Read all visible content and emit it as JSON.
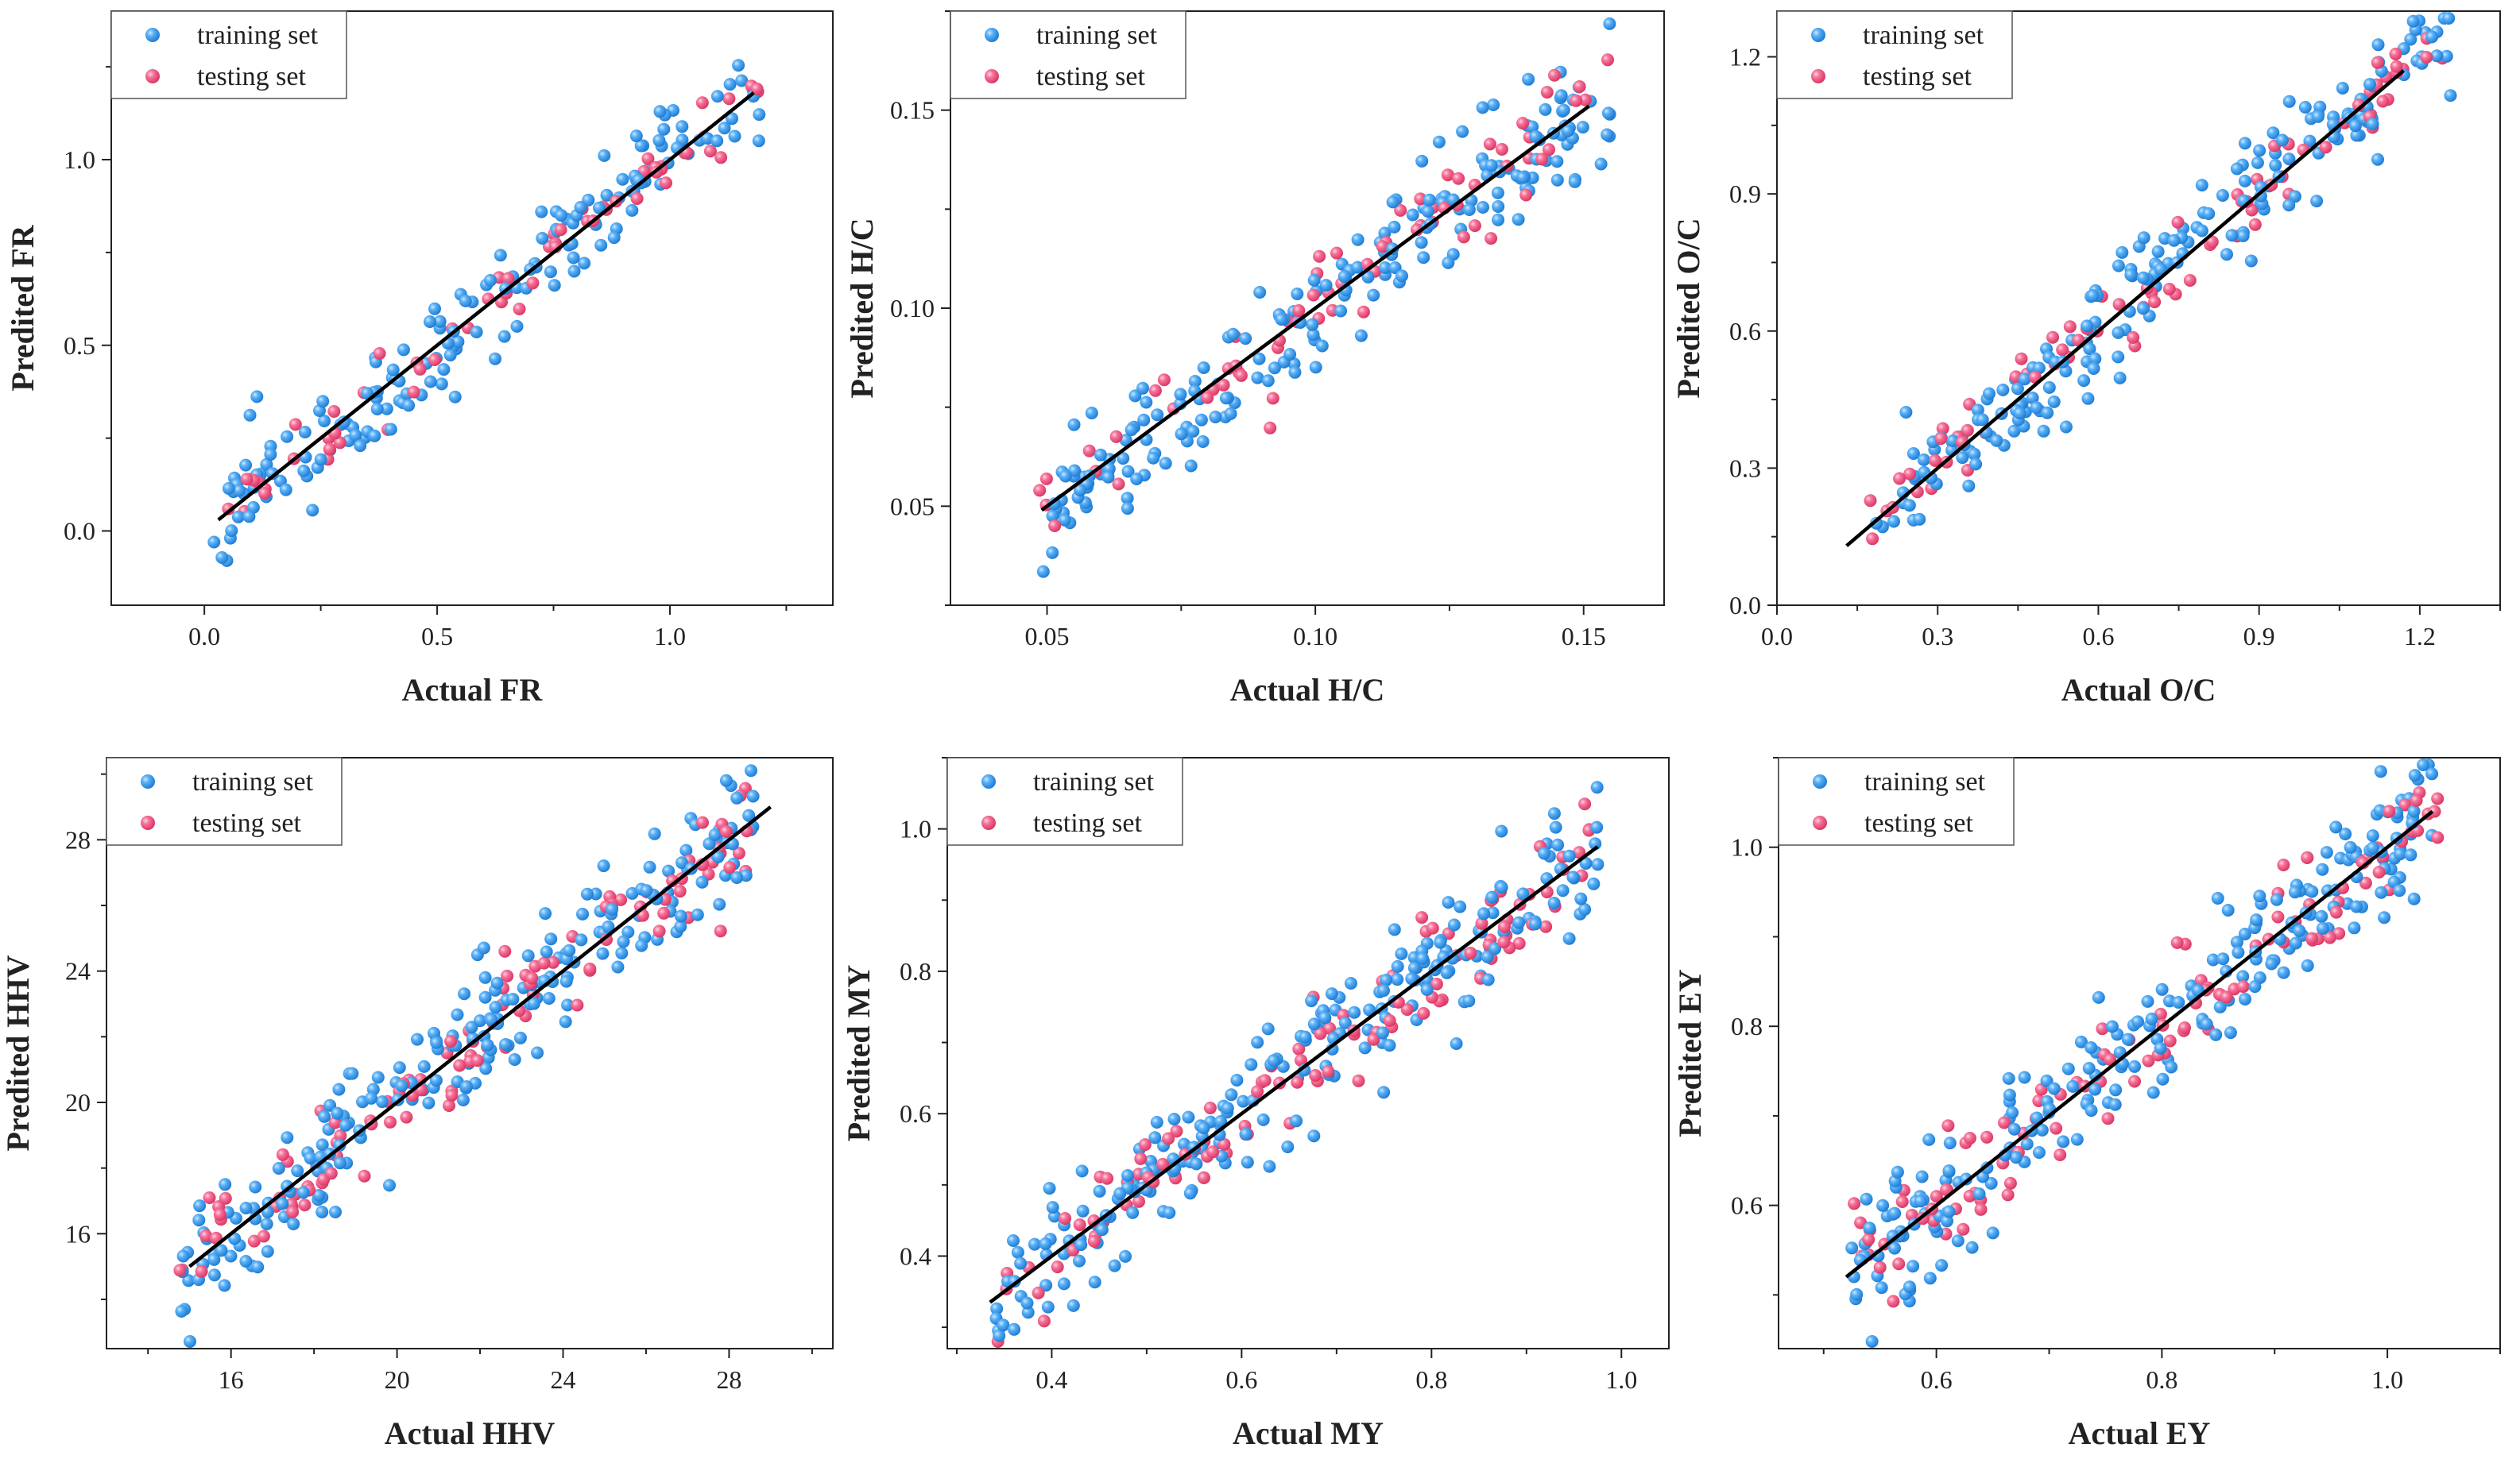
{
  "figure": {
    "background": "#ffffff"
  },
  "colors": {
    "training": "#3d9ff0",
    "testing": "#f45c84",
    "fit_line": "#000000",
    "axis": "#222222"
  },
  "chart_data": [
    {
      "type": "scatter",
      "xlabel": "Actual FR",
      "ylabel": "Predited FR",
      "xlim": [
        -0.2,
        1.35
      ],
      "ylim": [
        -0.2,
        1.4
      ],
      "xticks": [
        0.0,
        0.5,
        1.0
      ],
      "xtick_labels": [
        "0.0",
        "0.5",
        "1.0"
      ],
      "yticks": [
        0.0,
        0.5,
        1.0
      ],
      "ytick_labels": [
        "0.0",
        "0.5",
        "1.0"
      ],
      "fit_line": [
        [
          0.03,
          0.03
        ],
        [
          1.18,
          1.18
        ]
      ],
      "legend": [
        "training set",
        "testing set"
      ],
      "sample": {
        "n_train": 170,
        "n_test": 60,
        "xmin": 0.02,
        "xmax": 1.2,
        "noise": 0.07,
        "seed": 11
      }
    },
    {
      "type": "scatter",
      "xlabel": "Actual H/C",
      "ylabel": "Predited H/C",
      "xlim": [
        0.032,
        0.165
      ],
      "ylim": [
        0.025,
        0.175
      ],
      "xticks": [
        0.05,
        0.1,
        0.15
      ],
      "xtick_labels": [
        "0.05",
        "0.10",
        "0.15"
      ],
      "yticks": [
        0.05,
        0.1,
        0.15
      ],
      "ytick_labels": [
        "0.05",
        "0.10",
        "0.15"
      ],
      "fit_line": [
        [
          0.049,
          0.049
        ],
        [
          0.151,
          0.151
        ]
      ],
      "legend": [
        "training set",
        "testing set"
      ],
      "sample": {
        "n_train": 200,
        "n_test": 70,
        "xmin": 0.048,
        "xmax": 0.155,
        "noise": 0.0075,
        "seed": 23
      }
    },
    {
      "type": "scatter",
      "xlabel": "Actual O/C",
      "ylabel": "Predited O/C",
      "xlim": [
        0.0,
        1.35
      ],
      "ylim": [
        0.0,
        1.3
      ],
      "xticks": [
        0.0,
        0.3,
        0.6,
        0.9,
        1.2
      ],
      "xtick_labels": [
        "0.0",
        "0.3",
        "0.6",
        "0.9",
        "1.2"
      ],
      "yticks": [
        0.0,
        0.3,
        0.6,
        0.9,
        1.2
      ],
      "ytick_labels": [
        "0.0",
        "0.3",
        "0.6",
        "0.9",
        "1.2"
      ],
      "fit_line": [
        [
          0.13,
          0.13
        ],
        [
          1.17,
          1.17
        ]
      ],
      "legend": [
        "training set",
        "testing set"
      ],
      "sample": {
        "n_train": 200,
        "n_test": 80,
        "xmin": 0.17,
        "xmax": 1.26,
        "noise": 0.06,
        "seed": 37
      }
    },
    {
      "type": "scatter",
      "xlabel": "Actual HHV",
      "ylabel": "Predited HHV",
      "xlim": [
        13.0,
        30.5
      ],
      "ylim": [
        12.5,
        30.5
      ],
      "xticks": [
        16,
        20,
        24,
        28
      ],
      "xtick_labels": [
        "16",
        "20",
        "24",
        "28"
      ],
      "yticks": [
        16,
        20,
        24,
        28
      ],
      "ytick_labels": [
        "16",
        "20",
        "24",
        "28"
      ],
      "fit_line": [
        [
          15.0,
          15.0
        ],
        [
          29.0,
          29.0
        ]
      ],
      "legend": [
        "training set",
        "testing set"
      ],
      "sample": {
        "n_train": 220,
        "n_test": 110,
        "xmin": 14.6,
        "xmax": 28.6,
        "noise": 1.0,
        "seed": 41
      }
    },
    {
      "type": "scatter",
      "xlabel": "Actual MY",
      "ylabel": "Predited MY",
      "xlim": [
        0.29,
        1.05
      ],
      "ylim": [
        0.27,
        1.1
      ],
      "xticks": [
        0.4,
        0.6,
        0.8,
        1.0
      ],
      "xtick_labels": [
        "0.4",
        "0.6",
        "0.8",
        "1.0"
      ],
      "yticks": [
        0.4,
        0.6,
        0.8,
        1.0
      ],
      "ytick_labels": [
        "0.4",
        "0.6",
        "0.8",
        "1.0"
      ],
      "fit_line": [
        [
          0.335,
          0.335
        ],
        [
          0.975,
          0.975
        ]
      ],
      "legend": [
        "training set",
        "testing set"
      ],
      "sample": {
        "n_train": 230,
        "n_test": 110,
        "xmin": 0.335,
        "xmax": 0.975,
        "noise": 0.045,
        "seed": 53
      }
    },
    {
      "type": "scatter",
      "xlabel": "Actual EY",
      "ylabel": "Predited EY",
      "xlim": [
        0.46,
        1.1
      ],
      "ylim": [
        0.44,
        1.1
      ],
      "xticks": [
        0.6,
        0.8,
        1.0
      ],
      "xtick_labels": [
        "0.6",
        "0.8",
        "1.0"
      ],
      "yticks": [
        0.6,
        0.8,
        1.0
      ],
      "ytick_labels": [
        "0.6",
        "0.8",
        "1.0"
      ],
      "fit_line": [
        [
          0.52,
          0.52
        ],
        [
          1.04,
          1.04
        ]
      ],
      "legend": [
        "training set",
        "testing set"
      ],
      "sample": {
        "n_train": 230,
        "n_test": 110,
        "xmin": 0.525,
        "xmax": 1.045,
        "noise": 0.035,
        "seed": 67
      }
    }
  ]
}
